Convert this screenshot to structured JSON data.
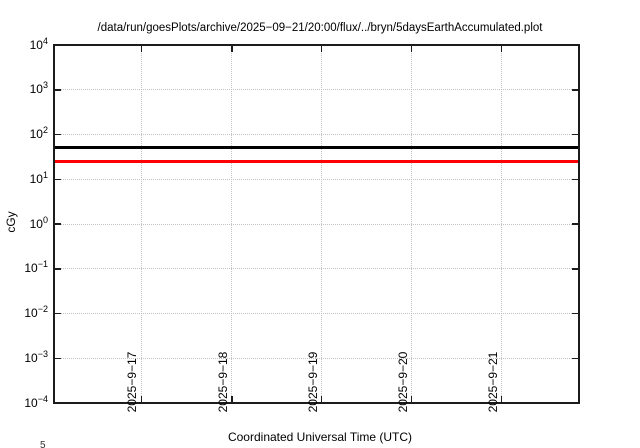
{
  "chart_data": {
    "type": "line",
    "title": "/data/run/goesPlots/archive/2025−09−21/20:00/flux/../bryn/5daysEarthAccumulated.plot",
    "xlabel": "Coordinated Universal Time (UTC)",
    "ylabel": "cGy",
    "y_scale": "log10",
    "ylim": [
      0.0001,
      10000
    ],
    "ylim_exponents": [
      -4,
      4
    ],
    "y_tick_base": "10",
    "y_tick_exponents": [
      4,
      3,
      2,
      1,
      0,
      -1,
      -2,
      -3,
      -4
    ],
    "x_ticks": [
      {
        "label": "2025−9−17",
        "pos": 0.166
      },
      {
        "label": "2025−9−18",
        "pos": 0.338
      },
      {
        "label": "2025−9−19",
        "pos": 0.509
      },
      {
        "label": "2025−9−20",
        "pos": 0.68
      },
      {
        "label": "2025−9−21",
        "pos": 0.851
      }
    ],
    "series": [
      {
        "name": "black-accumulated-dose-line",
        "shape": "horizontal-line",
        "value_cGy": 50,
        "color": "#000000",
        "style": "solid"
      },
      {
        "name": "red-accumulated-dose-line",
        "shape": "horizontal-line",
        "value_cGy": 25,
        "color": "#ff0000",
        "style": "solid"
      }
    ],
    "grid": {
      "visible": true,
      "style": "dotted",
      "color": "#c3c3c3"
    },
    "legend": "none",
    "clipped_bottom_fragment": "5"
  }
}
